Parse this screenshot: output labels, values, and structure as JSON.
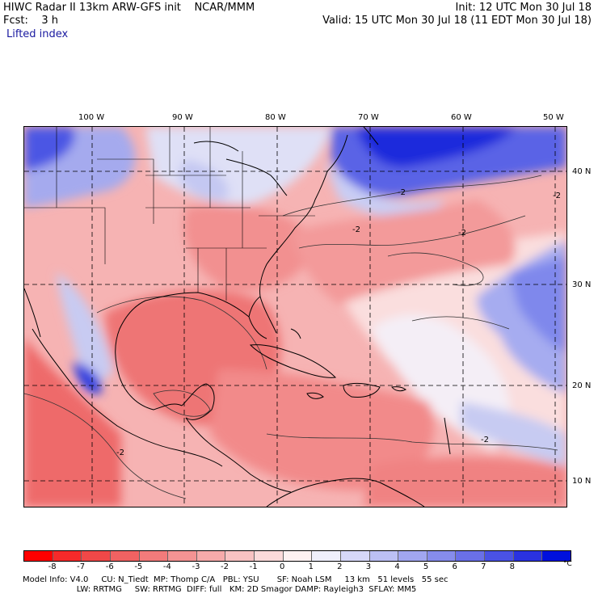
{
  "header": {
    "left_line1": "HIWC Radar II 13km ARW-GFS init    NCAR/MMM",
    "left_line2": "Fcst:    3 h",
    "field_name": "Lifted index",
    "right_line1": "Init: 12 UTC Mon 30 Jul 18",
    "right_line2": "Valid: 15 UTC Mon 30 Jul 18 (11 EDT Mon 30 Jul 18)"
  },
  "map": {
    "longitude_labels": [
      "100 W",
      "90 W",
      "80 W",
      "70 W",
      "60 W",
      "50 W"
    ],
    "latitude_labels": [
      "40 N",
      "30 N",
      "20 N",
      "10 N"
    ],
    "contour_label": "-2",
    "colors": {
      "strong_negative": "#f07070",
      "moderate_negative": "#f5a5a5",
      "weak_negative": "#fad0d0",
      "near_zero": "#f5f0f5",
      "weak_positive": "#c8cdf5",
      "moderate_positive": "#8890ee",
      "strong_positive": "#2030e0",
      "coastline": "#000000",
      "gridline": "#000000"
    }
  },
  "colorbar": {
    "labels": [
      "-8",
      "-7",
      "-6",
      "-5",
      "-4",
      "-3",
      "-2",
      "-1",
      "0",
      "1",
      "2",
      "3",
      "4",
      "5",
      "6",
      "7",
      "8"
    ],
    "unit": "°C",
    "colors": [
      "#ff0000",
      "#f52a2a",
      "#f04848",
      "#f06262",
      "#f27b7b",
      "#f49393",
      "#f6aaaa",
      "#f8c2c2",
      "#fbdada",
      "#fdf1f1",
      "#f0f0fc",
      "#d6d8f8",
      "#bcc0f4",
      "#a1a6f0",
      "#868cec",
      "#6a70e8",
      "#4a52e4",
      "#2a32e0",
      "#0010dd"
    ]
  },
  "model_info": {
    "line1": "Model Info: V4.0     CU: N_Tiedt  MP: Thomp C/A   PBL: YSU       SF: Noah LSM     13 km   51 levels   55 sec",
    "line2": "                     LW: RRTMG     SW: RRTMG  DIFF: full   KM: 2D Smagor DAMP: Rayleigh3  SFLAY: MM5"
  }
}
